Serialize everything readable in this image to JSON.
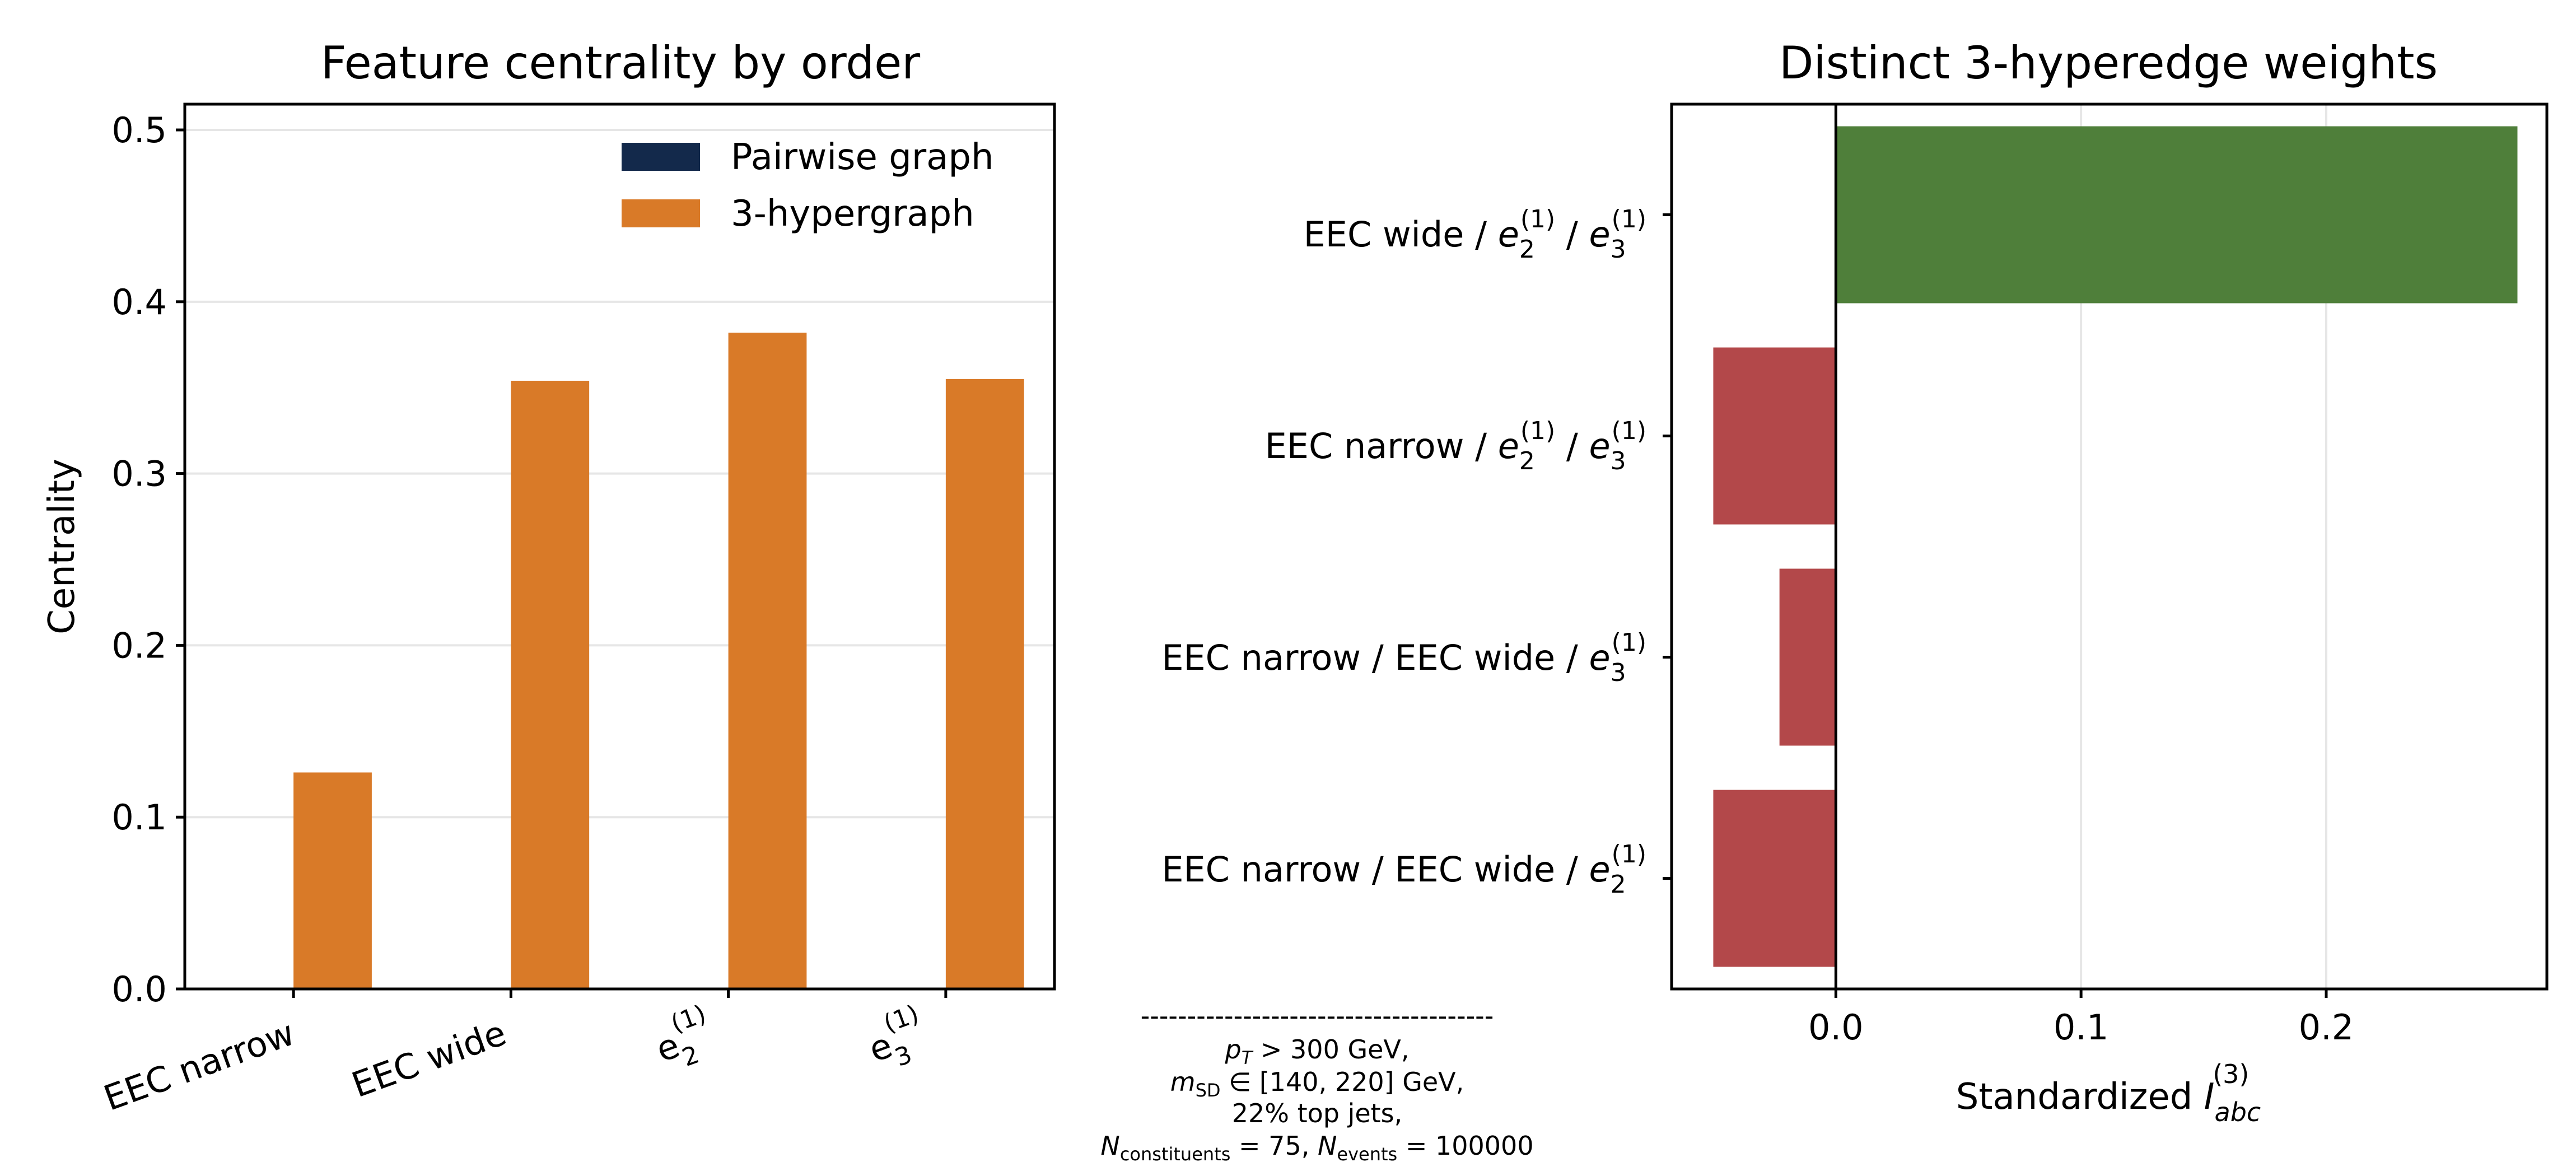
{
  "colors": {
    "pairwise": "#13294b",
    "hyper": "#d97a28",
    "positive": "#4f7f3a",
    "negative": "#b3484a"
  },
  "chart_data": [
    {
      "type": "bar",
      "title": "Feature centrality by order",
      "ylabel": "Centrality",
      "xlabel": "",
      "categories": [
        "EEC narrow",
        "EEC wide",
        "e_2^(1)",
        "e_3^(1)"
      ],
      "series": [
        {
          "name": "Pairwise graph",
          "values": [
            0,
            0,
            0,
            0
          ]
        },
        {
          "name": "3-hypergraph",
          "values": [
            0.126,
            0.354,
            0.382,
            0.355
          ]
        }
      ],
      "ylim": [
        0,
        0.515
      ],
      "yticks": [
        "0.0",
        "0.1",
        "0.2",
        "0.3",
        "0.4",
        "0.5"
      ],
      "grid": "horizontal",
      "legend": "top-right"
    },
    {
      "type": "bar",
      "orientation": "horizontal",
      "title": "Distinct 3-hyperedge weights",
      "xlabel": "Standardized I_abc^(3)",
      "categories": [
        "EEC wide / e_2^(1) / e_3^(1)",
        "EEC narrow / e_2^(1) / e_3^(1)",
        "EEC narrow / EEC wide / e_3^(1)",
        "EEC narrow / EEC wide / e_2^(1)"
      ],
      "values": [
        0.278,
        -0.05,
        -0.023,
        -0.05
      ],
      "xlim": [
        -0.067,
        0.29
      ],
      "xticks": [
        "0.0",
        "0.1",
        "0.2"
      ],
      "grid": "vertical"
    }
  ],
  "note": {
    "separator": "--------------------------------------",
    "line1_var": "p",
    "line1_sub": "T",
    "line1_rest": " > 300 GeV,",
    "line2_var": "m",
    "line2_sub": "SD",
    "line2_rest": " ∈ [140, 220] GeV,",
    "line3": "22% top jets,",
    "line4_var1": "N",
    "line4_sub1": "constituents",
    "line4_mid": " = 75, ",
    "line4_var2": "N",
    "line4_sub2": "events",
    "line4_rest": " = 100000"
  }
}
